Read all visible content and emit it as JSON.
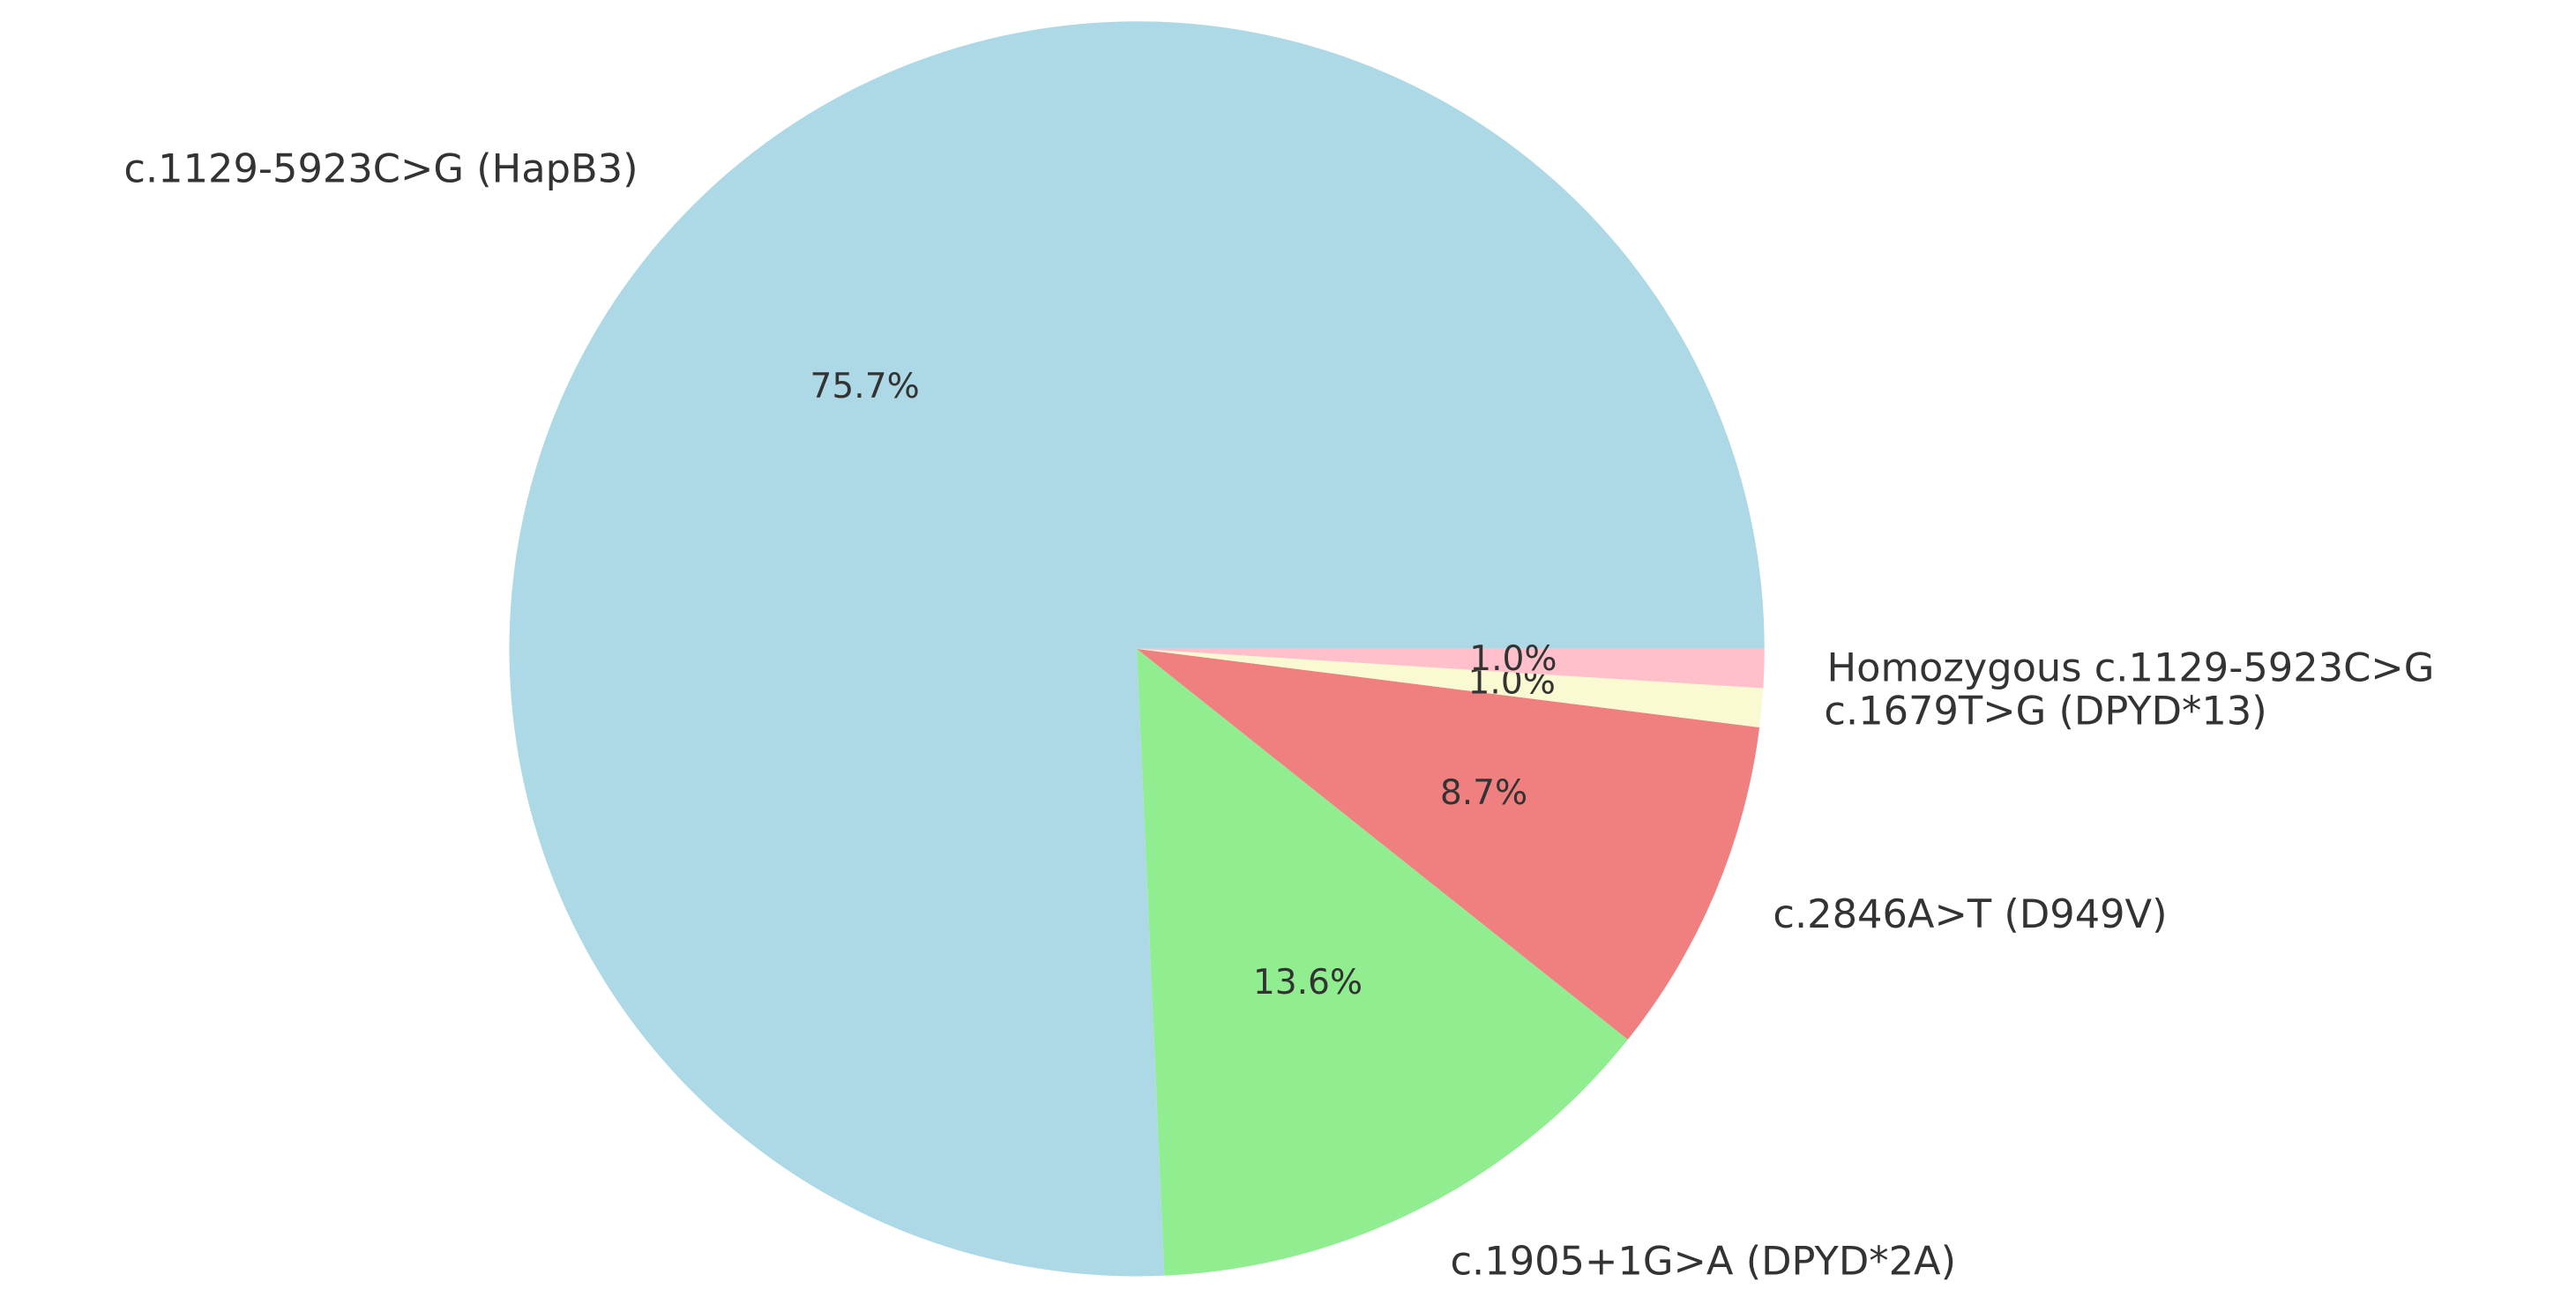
{
  "chart_data": {
    "type": "pie",
    "categories": [
      "c.1129-5923C>G (HapB3)",
      "c.1905+1G>A (DPYD*2A)",
      "c.2846A>T (D949V)",
      "c.1679T>G (DPYD*13)",
      "Homozygous c.1129-5923C>G"
    ],
    "values": [
      75.7,
      13.6,
      8.7,
      1.0,
      1.0
    ],
    "value_labels": [
      "75.7%",
      "13.6%",
      "8.7%",
      "1.0%",
      "1.0%"
    ],
    "colors": [
      "#add8e6",
      "#90ee90",
      "#f08080",
      "#fafad2",
      "#ffc0cb"
    ]
  }
}
